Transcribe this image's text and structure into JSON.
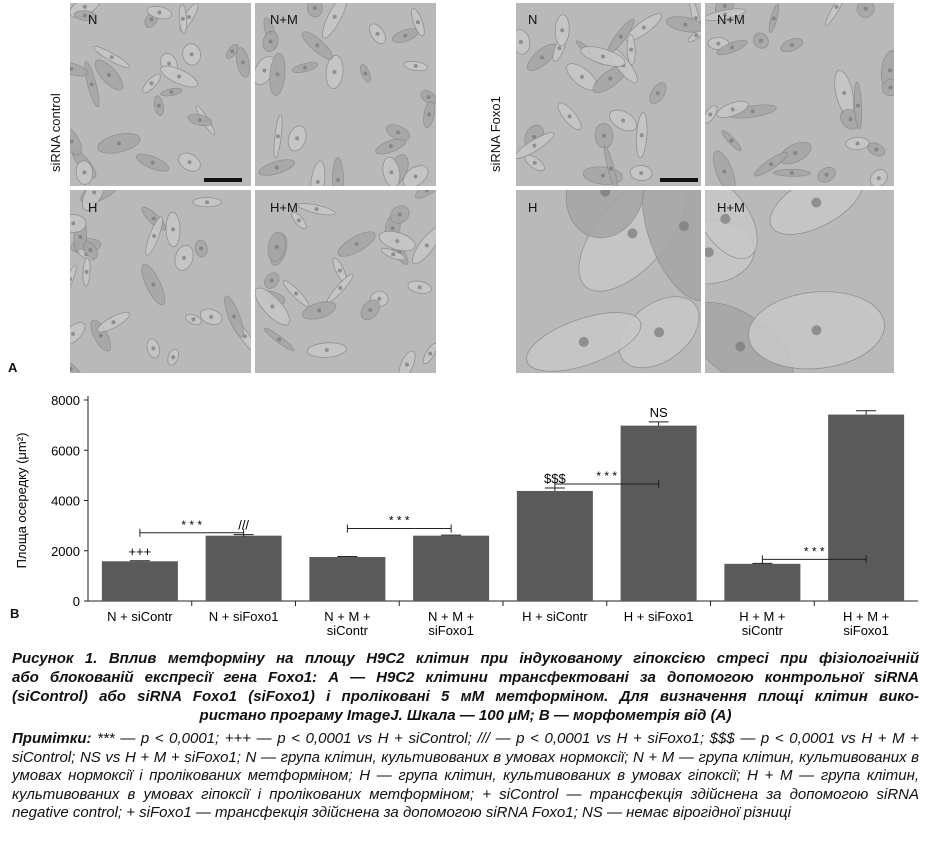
{
  "figure_a": {
    "panel_letter": "A",
    "left_group_label": "siRNA control",
    "right_group_label": "siRNA Foxo1",
    "left_panels": [
      "N",
      "N+M",
      "H",
      "H+M"
    ],
    "right_panels": [
      "N",
      "N+M",
      "H",
      "H+M"
    ]
  },
  "figure_b": {
    "panel_letter": "B"
  },
  "chart_data": {
    "type": "bar",
    "ylabel": "Площа осередку (μm²)",
    "ylim": [
      0,
      8000
    ],
    "yticks": [
      0,
      2000,
      4000,
      6000,
      8000
    ],
    "categories": [
      [
        "N + siContr"
      ],
      [
        "N + siFoxo1"
      ],
      [
        "N + M +",
        "siContr"
      ],
      [
        "N + M +",
        "siFoxo1"
      ],
      [
        "H + siContr"
      ],
      [
        "H + siFoxo1"
      ],
      [
        "H + M +",
        "siContr"
      ],
      [
        "H + M +",
        "siFoxo1"
      ]
    ],
    "values": [
      1580,
      2600,
      1750,
      2600,
      4380,
      6980,
      1480,
      7420
    ],
    "errors": [
      20,
      40,
      20,
      20,
      120,
      150,
      20,
      150
    ],
    "bar_labels": [
      "+++",
      "///",
      "",
      "",
      "$$$",
      "NS",
      "",
      ""
    ],
    "significance": [
      {
        "from": 0,
        "to": 1,
        "label": "* * *"
      },
      {
        "from": 2,
        "to": 3,
        "label": "* * *"
      },
      {
        "from": 4,
        "to": 5,
        "label": "* * *"
      },
      {
        "from": 6,
        "to": 7,
        "label": "* * *"
      }
    ],
    "grid": false,
    "bar_color": "#5a5a5a"
  },
  "caption": {
    "lines": [
      "Рисунок 1. Вплив метформіну на площу H9C2 клітин при індукованому гіпоксією стресі при фізіологічній",
      "або блокованій експресії гена Foxo1: А — H9C2 клітини трансфектовані за допомогою контрольної siRNA",
      "(siControl) або siRNA Foxo1 (siFoxo1) і проліковані 5 мМ метформіном. Для визначення площі клітин вико-",
      "ристано програму ImageJ. Шкала — 100 μM; В — морфометрія від (A)"
    ]
  },
  "notes": {
    "prefix": "Примітки:",
    "text": " *** — р < 0,0001; +++ — р < 0,0001 vs H + siControl; /// — р < 0,0001 vs H + siFoxo1; $$$ — р < 0,0001 vs H + M + siControl; NS vs H + M + siFoxo1; N — група клітин, культивованих в умовах нормоксії; N + M — група клітин, культивованих в умовах нормоксії і пролікованих метформіном; Н — група клітин, культивованих в умовах гіпоксії; Н + М — група клітин, культивованих в умовах гіпоксії і пролікованих метформіном; + siControl — трансфекція здійснена за допомогою siRNA negative control;  + siFoxo1 — трансфекція здійснена за допомогою siRNA Foxo1; NS — немає вірогідної різниці"
  }
}
